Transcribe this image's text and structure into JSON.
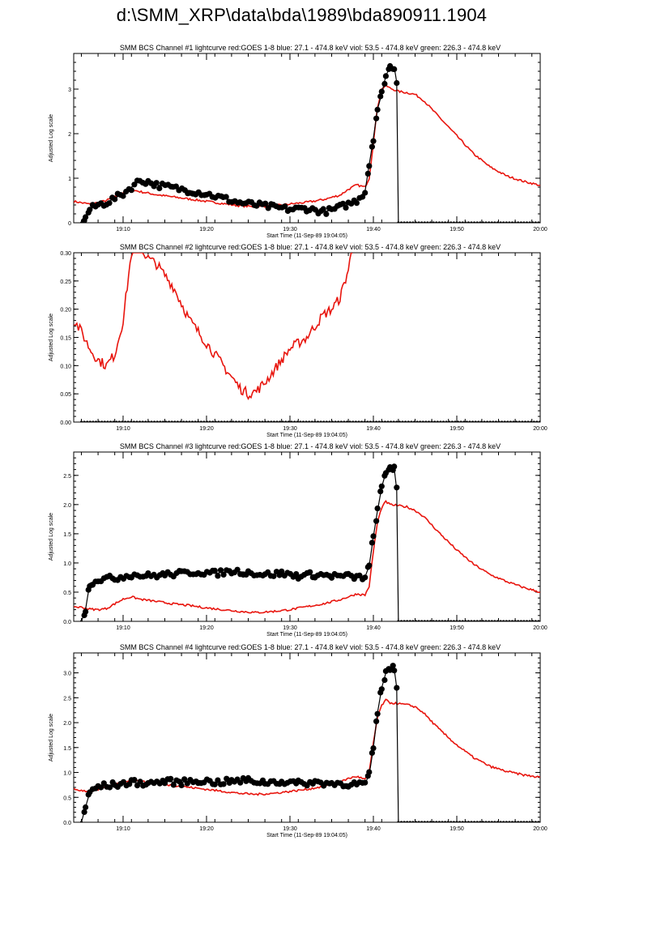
{
  "page": {
    "title": "d:\\SMM_XRP\\data\\bda\\1989\\bda890911.1904"
  },
  "colors": {
    "goes": "#e8150e",
    "bcs": "#000000",
    "axis": "#000000"
  },
  "chart_data": [
    {
      "type": "line",
      "title": "SMM BCS Channel #1 lightcurve  red:GOES 1-8  blue: 27.1 - 474.8 keV  viol: 53.5 - 474.8 keV  green: 226.3 - 474.8 keV",
      "xlabel": "Start Time (11-Sep-89 19:04:05)",
      "ylabel": "Adjusted Log scale",
      "xlim": [
        4.08,
        60
      ],
      "ylim": [
        0,
        3.8
      ],
      "yticks": [
        0,
        1,
        2,
        3
      ],
      "ytick_labels": [
        "0",
        "1",
        "2",
        "3"
      ],
      "xticks": [
        10,
        20,
        30,
        40,
        50,
        60
      ],
      "xtick_labels": [
        "19:10",
        "19:20",
        "19:30",
        "19:40",
        "19:50",
        "20:00"
      ],
      "series": [
        {
          "name": "GOES 1-8",
          "x": [
            4.1,
            5,
            6,
            7,
            8,
            9,
            10,
            11,
            12,
            14,
            16,
            18,
            20,
            22,
            24,
            26,
            28,
            30,
            32,
            34,
            36,
            37,
            38,
            39,
            39.5,
            40,
            40.5,
            41,
            41.5,
            42,
            43,
            44,
            45,
            46,
            47,
            48,
            50,
            52,
            54,
            56,
            58,
            60
          ],
          "y": [
            0.48,
            0.45,
            0.42,
            0.45,
            0.5,
            0.58,
            0.68,
            0.74,
            0.7,
            0.63,
            0.58,
            0.53,
            0.48,
            0.43,
            0.38,
            0.36,
            0.38,
            0.42,
            0.46,
            0.52,
            0.62,
            0.75,
            0.85,
            0.8,
            1.0,
            1.8,
            2.6,
            3.0,
            3.08,
            3.02,
            2.95,
            2.92,
            2.88,
            2.75,
            2.55,
            2.35,
            1.95,
            1.55,
            1.25,
            1.05,
            0.93,
            0.84
          ]
        },
        {
          "name": "BCS",
          "x": [
            5,
            5.5,
            6,
            7,
            8,
            9,
            10,
            11,
            12,
            13,
            14,
            16,
            18,
            20,
            22,
            24,
            26,
            28,
            30,
            32,
            34,
            35,
            36,
            37,
            38,
            39,
            39.5,
            40,
            40.5,
            41,
            41.5,
            42,
            42.5,
            42.8,
            43,
            50,
            60
          ],
          "y": [
            0,
            0.1,
            0.3,
            0.4,
            0.45,
            0.55,
            0.65,
            0.8,
            0.95,
            0.92,
            0.85,
            0.78,
            0.72,
            0.65,
            0.55,
            0.45,
            0.4,
            0.35,
            0.3,
            0.32,
            0.25,
            0.28,
            0.35,
            0.42,
            0.5,
            0.7,
            1.3,
            1.9,
            2.55,
            2.9,
            3.3,
            3.5,
            3.5,
            3.15,
            0,
            0,
            0
          ]
        }
      ]
    },
    {
      "type": "line",
      "title": "SMM BCS Channel #2 lightcurve  red:GOES 1-8  blue: 27.1 - 474.8 keV  viol: 53.5 - 474.8 keV  green: 226.3 - 474.8 keV",
      "xlabel": "Start Time (11-Sep-89 19:04:05)",
      "ylabel": "Adjusted Log scale",
      "xlim": [
        4.08,
        60
      ],
      "ylim": [
        0,
        0.3
      ],
      "yticks": [
        0,
        0.05,
        0.1,
        0.15,
        0.2,
        0.25,
        0.3
      ],
      "ytick_labels": [
        "0.00",
        "0.05",
        "0.10",
        "0.15",
        "0.20",
        "0.25",
        "0.30"
      ],
      "xticks": [
        10,
        20,
        30,
        40,
        50,
        60
      ],
      "xtick_labels": [
        "19:10",
        "19:20",
        "19:30",
        "19:40",
        "19:50",
        "20:00"
      ],
      "series": [
        {
          "name": "GOES 1-8",
          "x": [
            4.1,
            5,
            6,
            7,
            8,
            9,
            9.5,
            10,
            10.5,
            11,
            12,
            13,
            14,
            15,
            16,
            17,
            18,
            20,
            22,
            24,
            25,
            26,
            27,
            28,
            29,
            30,
            31,
            32,
            33,
            34,
            35,
            36,
            37,
            37.5
          ],
          "y": [
            0.18,
            0.16,
            0.13,
            0.11,
            0.1,
            0.12,
            0.15,
            0.18,
            0.24,
            0.3,
            0.31,
            0.29,
            0.28,
            0.26,
            0.24,
            0.21,
            0.18,
            0.14,
            0.1,
            0.06,
            0.05,
            0.055,
            0.07,
            0.09,
            0.11,
            0.13,
            0.14,
            0.15,
            0.17,
            0.19,
            0.2,
            0.22,
            0.27,
            0.31
          ]
        },
        {
          "name": "BCS",
          "x": [
            5,
            60
          ],
          "y": [
            0,
            0
          ]
        }
      ]
    },
    {
      "type": "line",
      "title": "SMM BCS Channel #3 lightcurve  red:GOES 1-8  blue: 27.1 - 474.8 keV  viol: 53.5 - 474.8 keV  green: 226.3 - 474.8 keV",
      "xlabel": "Start Time (11-Sep-89 19:04:05)",
      "ylabel": "Adjusted Log scale",
      "xlim": [
        4.08,
        60
      ],
      "ylim": [
        0,
        2.9
      ],
      "yticks": [
        0,
        0.5,
        1,
        1.5,
        2,
        2.5
      ],
      "ytick_labels": [
        "0.0",
        "0.5",
        "1.0",
        "1.5",
        "2.0",
        "2.5"
      ],
      "xticks": [
        10,
        20,
        30,
        40,
        50,
        60
      ],
      "xtick_labels": [
        "19:10",
        "19:20",
        "19:30",
        "19:40",
        "19:50",
        "20:00"
      ],
      "series": [
        {
          "name": "GOES 1-8",
          "x": [
            4.1,
            5,
            6,
            7,
            8,
            9,
            10,
            11,
            12,
            14,
            16,
            18,
            20,
            22,
            24,
            26,
            28,
            30,
            32,
            34,
            36,
            37,
            38,
            39,
            39.5,
            40,
            40.5,
            41,
            41.5,
            42,
            43,
            44,
            45,
            46,
            47,
            48,
            50,
            52,
            54,
            56,
            58,
            60
          ],
          "y": [
            0.25,
            0.24,
            0.21,
            0.2,
            0.22,
            0.3,
            0.38,
            0.42,
            0.38,
            0.34,
            0.3,
            0.27,
            0.23,
            0.2,
            0.17,
            0.15,
            0.17,
            0.2,
            0.25,
            0.3,
            0.37,
            0.42,
            0.47,
            0.45,
            0.6,
            1.2,
            1.7,
            1.95,
            2.05,
            2.0,
            1.98,
            1.96,
            1.9,
            1.8,
            1.65,
            1.5,
            1.22,
            0.98,
            0.8,
            0.68,
            0.58,
            0.5
          ]
        },
        {
          "name": "BCS",
          "x": [
            5,
            5.5,
            6,
            7,
            9,
            11,
            13,
            15,
            17,
            19,
            21,
            23,
            25,
            27,
            29,
            31,
            33,
            35,
            37,
            38,
            39,
            39.5,
            40,
            40.5,
            41,
            41.5,
            42,
            42.5,
            42.8,
            43,
            50,
            60
          ],
          "y": [
            0,
            0.2,
            0.65,
            0.72,
            0.74,
            0.8,
            0.78,
            0.8,
            0.82,
            0.85,
            0.82,
            0.86,
            0.84,
            0.8,
            0.82,
            0.78,
            0.8,
            0.78,
            0.77,
            0.75,
            0.76,
            0.95,
            1.45,
            1.9,
            2.3,
            2.55,
            2.65,
            2.62,
            2.25,
            0,
            0,
            0
          ]
        }
      ]
    },
    {
      "type": "line",
      "title": "SMM BCS Channel #4 lightcurve  red:GOES 1-8  blue: 27.1 - 474.8 keV  viol: 53.5 - 474.8 keV  green: 226.3 - 474.8 keV",
      "xlabel": "Start Time (11-Sep-89 19:04:05)",
      "ylabel": "Adjusted Log scale",
      "xlim": [
        4.08,
        60
      ],
      "ylim": [
        0,
        3.4
      ],
      "yticks": [
        0,
        0.5,
        1,
        1.5,
        2,
        2.5,
        3
      ],
      "ytick_labels": [
        "0.0",
        "0.5",
        "1.0",
        "1.5",
        "2.0",
        "2.5",
        "3.0"
      ],
      "xticks": [
        10,
        20,
        30,
        40,
        50,
        60
      ],
      "xtick_labels": [
        "19:10",
        "19:20",
        "19:30",
        "19:40",
        "19:50",
        "20:00"
      ],
      "series": [
        {
          "name": "GOES 1-8",
          "x": [
            4.1,
            5,
            6,
            7,
            8,
            9,
            10,
            11,
            12,
            14,
            16,
            18,
            20,
            22,
            24,
            26,
            28,
            30,
            32,
            34,
            36,
            37,
            38,
            39,
            39.5,
            40,
            40.5,
            41,
            41.5,
            42,
            43,
            44,
            45,
            46,
            47,
            48,
            50,
            52,
            54,
            56,
            58,
            60
          ],
          "y": [
            0.66,
            0.64,
            0.62,
            0.65,
            0.7,
            0.76,
            0.82,
            0.85,
            0.82,
            0.78,
            0.74,
            0.7,
            0.66,
            0.62,
            0.58,
            0.56,
            0.58,
            0.62,
            0.66,
            0.72,
            0.8,
            0.88,
            0.92,
            0.86,
            1.0,
            1.6,
            2.1,
            2.35,
            2.45,
            2.4,
            2.38,
            2.36,
            2.32,
            2.2,
            2.02,
            1.85,
            1.55,
            1.3,
            1.12,
            1.02,
            0.95,
            0.9
          ]
        },
        {
          "name": "BCS",
          "x": [
            5,
            5.5,
            6,
            7,
            9,
            11,
            13,
            15,
            17,
            19,
            21,
            23,
            25,
            27,
            29,
            31,
            33,
            35,
            37,
            38,
            39,
            39.5,
            40,
            40.5,
            41,
            41.5,
            42,
            42.5,
            42.8,
            43,
            50,
            60
          ],
          "y": [
            0,
            0.3,
            0.6,
            0.72,
            0.75,
            0.8,
            0.78,
            0.82,
            0.8,
            0.84,
            0.8,
            0.82,
            0.84,
            0.8,
            0.82,
            0.78,
            0.8,
            0.78,
            0.77,
            0.76,
            0.78,
            0.95,
            1.5,
            2.2,
            2.7,
            3.0,
            3.1,
            3.08,
            2.7,
            0,
            0,
            0
          ]
        }
      ]
    }
  ]
}
